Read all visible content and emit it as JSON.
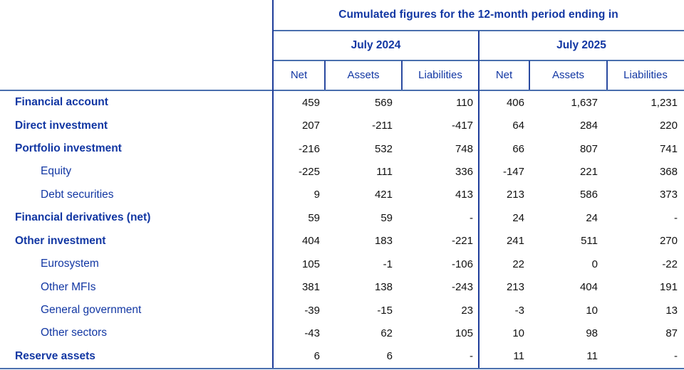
{
  "colors": {
    "text_blue": "#1237A3",
    "line_navy": "#1F3D99",
    "line_steel": "#4A6FAE",
    "number_black": "#111111"
  },
  "chart_data": {
    "type": "table",
    "title": "Cumulated figures for the 12-month period ending in",
    "periods": [
      {
        "label": "July 2024",
        "columns": [
          "Net",
          "Assets",
          "Liabilities"
        ]
      },
      {
        "label": "July 2025",
        "columns": [
          "Net",
          "Assets",
          "Liabilities"
        ]
      }
    ],
    "rows": [
      {
        "label": "Financial account",
        "bold": true,
        "indent": false,
        "values": [
          "459",
          "569",
          "110",
          "406",
          "1,637",
          "1,231"
        ]
      },
      {
        "label": "Direct investment",
        "bold": true,
        "indent": false,
        "values": [
          "207",
          "-211",
          "-417",
          "64",
          "284",
          "220"
        ]
      },
      {
        "label": "Portfolio investment",
        "bold": true,
        "indent": false,
        "values": [
          "-216",
          "532",
          "748",
          "66",
          "807",
          "741"
        ]
      },
      {
        "label": "Equity",
        "bold": false,
        "indent": true,
        "values": [
          "-225",
          "111",
          "336",
          "-147",
          "221",
          "368"
        ]
      },
      {
        "label": "Debt securities",
        "bold": false,
        "indent": true,
        "values": [
          "9",
          "421",
          "413",
          "213",
          "586",
          "373"
        ]
      },
      {
        "label": "Financial derivatives (net)",
        "bold": true,
        "indent": false,
        "values": [
          "59",
          "59",
          "-",
          "24",
          "24",
          "-"
        ]
      },
      {
        "label": "Other investment",
        "bold": true,
        "indent": false,
        "values": [
          "404",
          "183",
          "-221",
          "241",
          "511",
          "270"
        ]
      },
      {
        "label": "Eurosystem",
        "bold": false,
        "indent": true,
        "values": [
          "105",
          "-1",
          "-106",
          "22",
          "0",
          "-22"
        ]
      },
      {
        "label": "Other MFIs",
        "bold": false,
        "indent": true,
        "values": [
          "381",
          "138",
          "-243",
          "213",
          "404",
          "191"
        ]
      },
      {
        "label": "General government",
        "bold": false,
        "indent": true,
        "values": [
          "-39",
          "-15",
          "23",
          "-3",
          "10",
          "13"
        ]
      },
      {
        "label": "Other sectors",
        "bold": false,
        "indent": true,
        "values": [
          "-43",
          "62",
          "105",
          "10",
          "98",
          "87"
        ]
      },
      {
        "label": "Reserve assets",
        "bold": true,
        "indent": false,
        "values": [
          "6",
          "6",
          "-",
          "11",
          "11",
          "-"
        ]
      }
    ]
  }
}
